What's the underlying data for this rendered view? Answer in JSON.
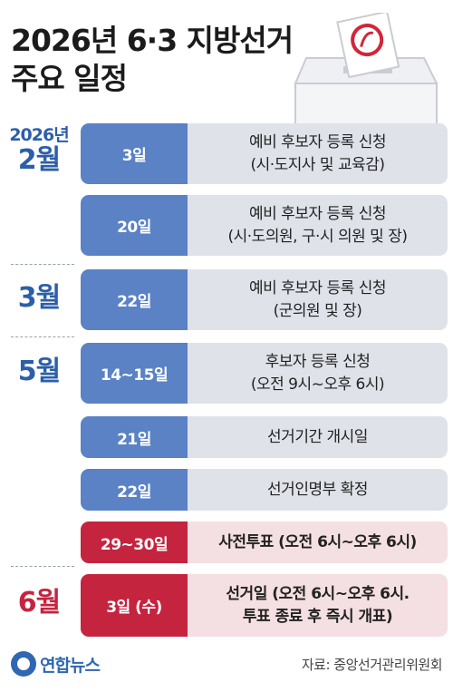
{
  "title": {
    "line1": "2026년 6·3 지방선거",
    "line2": "주요 일정"
  },
  "months": [
    {
      "year": "2026년",
      "month": "2월"
    },
    {
      "year": "",
      "month": "3월"
    },
    {
      "year": "",
      "month": "5월"
    },
    {
      "year": "",
      "month": "6월"
    }
  ],
  "schedule": [
    {
      "date": "3일",
      "desc_line1": "예비 후보자 등록 신청",
      "desc_line2": "(시·도지사 및 교육감)"
    },
    {
      "date": "20일",
      "desc_line1": "예비 후보자 등록 신청",
      "desc_line2": "(시·도의원, 구·시 의원 및 장)"
    },
    {
      "date": "22일",
      "desc_line1": "예비 후보자 등록 신청",
      "desc_line2": "(군의원 및 장)"
    },
    {
      "date": "14~15일",
      "desc_line1": "후보자 등록 신청",
      "desc_line2": "(오전 9시~오후 6시)"
    },
    {
      "date": "21일",
      "desc_line1": "선거기간 개시일",
      "desc_line2": ""
    },
    {
      "date": "22일",
      "desc_line1": "선거인명부 확정",
      "desc_line2": ""
    },
    {
      "date": "29~30일",
      "desc_line1": "사전투표 (오전 6시~오후 6시)",
      "desc_line2": ""
    },
    {
      "date": "3일 (수)",
      "desc_line1": "선거일 (오전 6시~오후 6시.",
      "desc_line2": "투표 종료 후 즉시 개표)"
    }
  ],
  "footer": {
    "logo": "연합뉴스",
    "source": "자료: 중앙선거관리위원회"
  },
  "colors": {
    "blue": "#5a82c5",
    "red": "#c5243f",
    "month_blue": "#2c5fa8",
    "row_bg": "#dfe3e9",
    "row_bg_red": "#f4dfe2"
  }
}
